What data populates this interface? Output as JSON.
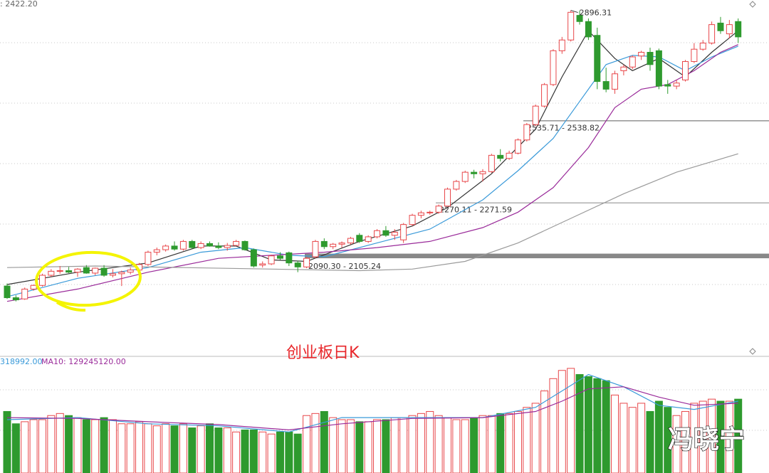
{
  "chart_data": {
    "type": "candlestick",
    "title": "创业板日K",
    "top_label": ": 2422.20",
    "watermark": "冯晓宁",
    "ylim": [
      1843,
      2930
    ],
    "open": [
      2000,
      1962,
      1958,
      1990,
      2002,
      2035,
      2048,
      2050,
      2045,
      2060,
      2042,
      2058,
      2035,
      2040,
      2045,
      2052,
      2070,
      2110,
      2118,
      2130,
      2120,
      2145,
      2125,
      2138,
      2130,
      2125,
      2132,
      2145,
      2118,
      2068,
      2072,
      2098,
      2108,
      2075,
      2062,
      2095,
      2145,
      2128,
      2136,
      2140,
      2165,
      2145,
      2160,
      2180,
      2165,
      2150,
      2200,
      2230,
      2238,
      2240,
      2260,
      2315,
      2340,
      2370,
      2365,
      2372,
      2425,
      2415,
      2432,
      2475,
      2525,
      2585,
      2655,
      2765,
      2800,
      2880,
      2860,
      2815,
      2665,
      2640,
      2700,
      2712,
      2748,
      2760,
      2765,
      2655,
      2650,
      2670,
      2730,
      2770,
      2790,
      2855,
      2820,
      2860
    ],
    "high": [
      2008,
      1970,
      1995,
      2005,
      2040,
      2055,
      2065,
      2062,
      2058,
      2068,
      2060,
      2068,
      2055,
      2050,
      2060,
      2075,
      2115,
      2125,
      2135,
      2145,
      2150,
      2150,
      2145,
      2145,
      2142,
      2140,
      2150,
      2148,
      2122,
      2080,
      2102,
      2110,
      2112,
      2082,
      2095,
      2150,
      2155,
      2140,
      2145,
      2160,
      2172,
      2165,
      2185,
      2195,
      2185,
      2205,
      2235,
      2245,
      2245,
      2265,
      2320,
      2345,
      2375,
      2378,
      2380,
      2430,
      2445,
      2440,
      2480,
      2530,
      2590,
      2660,
      2770,
      2810,
      2896.31,
      2895,
      2870,
      2840,
      2710,
      2700,
      2720,
      2750,
      2765,
      2775,
      2772,
      2670,
      2670,
      2735,
      2790,
      2800,
      2860,
      2875,
      2865,
      2870
    ],
    "low": [
      1958,
      1950,
      1955,
      1985,
      1998,
      2030,
      2040,
      2042,
      2030,
      2040,
      2035,
      2030,
      2028,
      2000,
      2038,
      2048,
      2065,
      2100,
      2112,
      2115,
      2115,
      2120,
      2120,
      2128,
      2120,
      2115,
      2130,
      2115,
      2060,
      2060,
      2068,
      2085,
      2065,
      2045,
      2058,
      2090,
      2120,
      2120,
      2125,
      2135,
      2140,
      2140,
      2155,
      2160,
      2150,
      2140,
      2195,
      2220,
      2232,
      2235,
      2258,
      2310,
      2335,
      2350,
      2340,
      2368,
      2405,
      2410,
      2428,
      2470,
      2520,
      2580,
      2650,
      2755,
      2795,
      2850,
      2800,
      2640,
      2630,
      2625,
      2685,
      2705,
      2735,
      2700,
      2640,
      2625,
      2640,
      2665,
      2725,
      2765,
      2785,
      2820,
      2805,
      2790
    ],
    "close": [
      1962,
      1955,
      1990,
      2002,
      2035,
      2048,
      2050,
      2045,
      2055,
      2042,
      2058,
      2035,
      2040,
      2045,
      2052,
      2070,
      2110,
      2118,
      2130,
      2120,
      2145,
      2125,
      2138,
      2130,
      2125,
      2132,
      2145,
      2118,
      2065,
      2072,
      2098,
      2090,
      2075,
      2062,
      2090,
      2145,
      2128,
      2136,
      2140,
      2155,
      2145,
      2160,
      2180,
      2165,
      2175,
      2200,
      2230,
      2238,
      2240,
      2260,
      2315,
      2340,
      2370,
      2365,
      2372,
      2425,
      2415,
      2432,
      2475,
      2525,
      2585,
      2655,
      2765,
      2800,
      2890,
      2860,
      2810,
      2665,
      2640,
      2690,
      2712,
      2745,
      2760,
      2720,
      2650,
      2650,
      2660,
      2730,
      2770,
      2790,
      2850,
      2830,
      2850,
      2810
    ],
    "up_color": "#e8474a",
    "down_color": "#2e9a2e",
    "ma_lines": [
      {
        "color": "#333333",
        "x": [
          0,
          8,
          16,
          22,
          26,
          30,
          34,
          40,
          46,
          50,
          55,
          60,
          63,
          66,
          69,
          71,
          74,
          77,
          80,
          83
        ],
        "values": [
          2005,
          2045,
          2075,
          2130,
          2130,
          2085,
          2080,
          2145,
          2195,
          2255,
          2365,
          2510,
          2680,
          2830,
          2740,
          2700,
          2740,
          2680,
          2760,
          2830
        ]
      },
      {
        "color": "#3a9ad9",
        "x": [
          0,
          8,
          16,
          22,
          27,
          32,
          36,
          42,
          48,
          54,
          58,
          62,
          65,
          68,
          71,
          74,
          77,
          80,
          83
        ],
        "values": [
          1965,
          2025,
          2060,
          2110,
          2125,
          2100,
          2095,
          2140,
          2185,
          2280,
          2375,
          2480,
          2600,
          2720,
          2750,
          2745,
          2700,
          2745,
          2780
        ]
      },
      {
        "color": "#9a2b9a",
        "x": [
          0,
          8,
          16,
          24,
          30,
          36,
          42,
          48,
          54,
          58,
          62,
          66,
          69,
          72,
          75,
          78,
          81,
          83
        ],
        "values": [
          1950,
          1990,
          2045,
          2090,
          2100,
          2110,
          2125,
          2145,
          2190,
          2240,
          2320,
          2450,
          2580,
          2640,
          2655,
          2700,
          2760,
          2785
        ]
      },
      {
        "color": "#9a9a9a",
        "x": [
          0,
          10,
          20,
          30,
          40,
          46,
          52,
          58,
          64,
          70,
          76,
          83
        ],
        "values": [
          2060,
          2065,
          2060,
          2055,
          2050,
          2055,
          2080,
          2140,
          2220,
          2300,
          2370,
          2430
        ]
      }
    ],
    "levels": [
      {
        "low": 2535.71,
        "high": 2538.82,
        "label": "2535.71 - 2538.82"
      },
      {
        "low": 2270.11,
        "high": 2271.59,
        "label": "2270.11 - 2271.59"
      },
      {
        "low": 2090.3,
        "high": 2105.24,
        "label": "2090.30 - 2105.24"
      }
    ],
    "volume_ylim": [
      0,
      260000000.0
    ],
    "volume": [
      150000000.0,
      120000000.0,
      125000000.0,
      130000000.0,
      130000000.0,
      140000000.0,
      145000000.0,
      140000000.0,
      135000000.0,
      130000000.0,
      130000000.0,
      135000000.0,
      130000000.0,
      120000000.0,
      120000000.0,
      125000000.0,
      120000000.0,
      115000000.0,
      120000000.0,
      115000000.0,
      120000000.0,
      110000000.0,
      115000000.0,
      120000000.0,
      110000000.0,
      110000000.0,
      100000000.0,
      105000000.0,
      105000000.0,
      100000000.0,
      95000000.0,
      100000000.0,
      100000000.0,
      95000000.0,
      140000000.0,
      145000000.0,
      150000000.0,
      135000000.0,
      130000000.0,
      130000000.0,
      125000000.0,
      125000000.0,
      130000000.0,
      130000000.0,
      135000000.0,
      135000000.0,
      140000000.0,
      145000000.0,
      150000000.0,
      140000000.0,
      135000000.0,
      130000000.0,
      130000000.0,
      135000000.0,
      140000000.0,
      140000000.0,
      145000000.0,
      145000000.0,
      150000000.0,
      160000000.0,
      170000000.0,
      200000000.0,
      230000000.0,
      250000000.0,
      255000000.0,
      240000000.0,
      235000000.0,
      230000000.0,
      225000000.0,
      190000000.0,
      170000000.0,
      160000000.0,
      170000000.0,
      150000000.0,
      175000000.0,
      160000000.0,
      140000000.0,
      150000000.0,
      170000000.0,
      175000000.0,
      180000000.0,
      175000000.0,
      175000000.0,
      180000000.0
    ],
    "volume_labels": [
      {
        "text": "318992.00",
        "color": "#3a9ad9"
      },
      {
        "text": "MA10: 129245120.00",
        "color": "#9a2b9a"
      }
    ],
    "volume_lines": [
      {
        "color": "#3a9ad9",
        "x": [
          0,
          8,
          16,
          24,
          32,
          38,
          46,
          54,
          60,
          63,
          66,
          70,
          74,
          78,
          83
        ],
        "values": [
          130000000.0,
          135000000.0,
          120000000.0,
          115000000.0,
          100000000.0,
          135000000.0,
          135000000.0,
          135000000.0,
          160000000.0,
          200000000.0,
          240000000.0,
          210000000.0,
          165000000.0,
          155000000.0,
          175000000.0
        ]
      },
      {
        "color": "#9a2b9a",
        "x": [
          0,
          8,
          16,
          24,
          32,
          38,
          46,
          54,
          60,
          63,
          66,
          70,
          74,
          78,
          83
        ],
        "values": [
          135000000.0,
          133000000.0,
          125000000.0,
          118000000.0,
          105000000.0,
          120000000.0,
          133000000.0,
          135000000.0,
          150000000.0,
          175000000.0,
          205000000.0,
          210000000.0,
          185000000.0,
          165000000.0,
          170000000.0
        ]
      }
    ]
  }
}
